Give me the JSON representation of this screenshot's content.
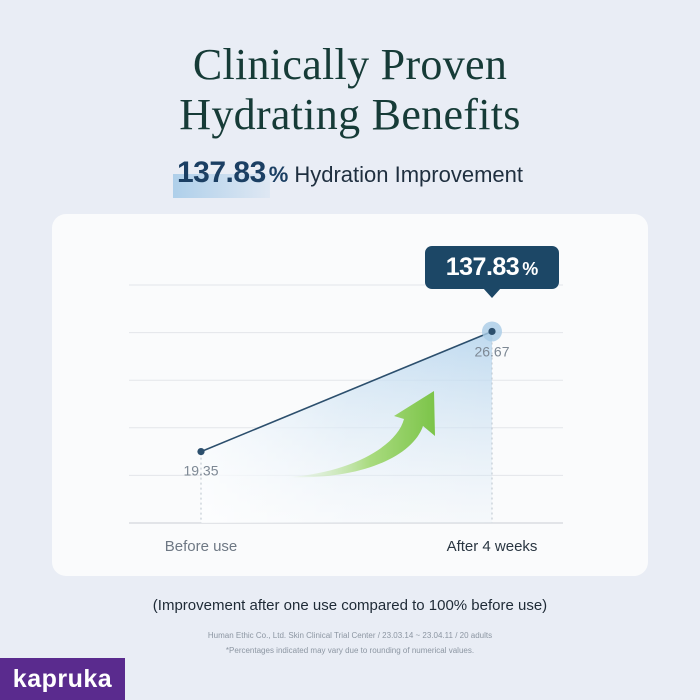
{
  "title": {
    "line1": "Clinically Proven",
    "line2": "Hydrating Benefits"
  },
  "headline": {
    "value": "137.83",
    "percent": "%",
    "text": "Hydration Improvement"
  },
  "callout": {
    "value": "137.83",
    "percent": "%"
  },
  "chart_data": {
    "type": "line",
    "categories": [
      "Before use",
      "After 4 weeks"
    ],
    "values": [
      19.35,
      26.67
    ],
    "value_labels": [
      "19.35",
      "26.67"
    ],
    "ylim": [
      15,
      29.5
    ],
    "grid": true,
    "title": "",
    "xlabel": "",
    "ylabel": ""
  },
  "note": "(Improvement after one use compared to 100% before use)",
  "footnotes": {
    "line1": "Human Ethic Co., Ltd. Skin Clinical Trial Center / 23.03.14 ~ 23.04.11 / 20 adults",
    "line2": "*Percentages indicated may vary due to rounding of numerical values."
  },
  "brand": "kapruka",
  "colors": {
    "background": "#e9edf5",
    "card": "#fafbfc",
    "title": "#163b37",
    "accent": "#1c4766",
    "line": "#2c4f6d",
    "arrow": "#8fcf5a",
    "brand": "#5a2b8e"
  }
}
